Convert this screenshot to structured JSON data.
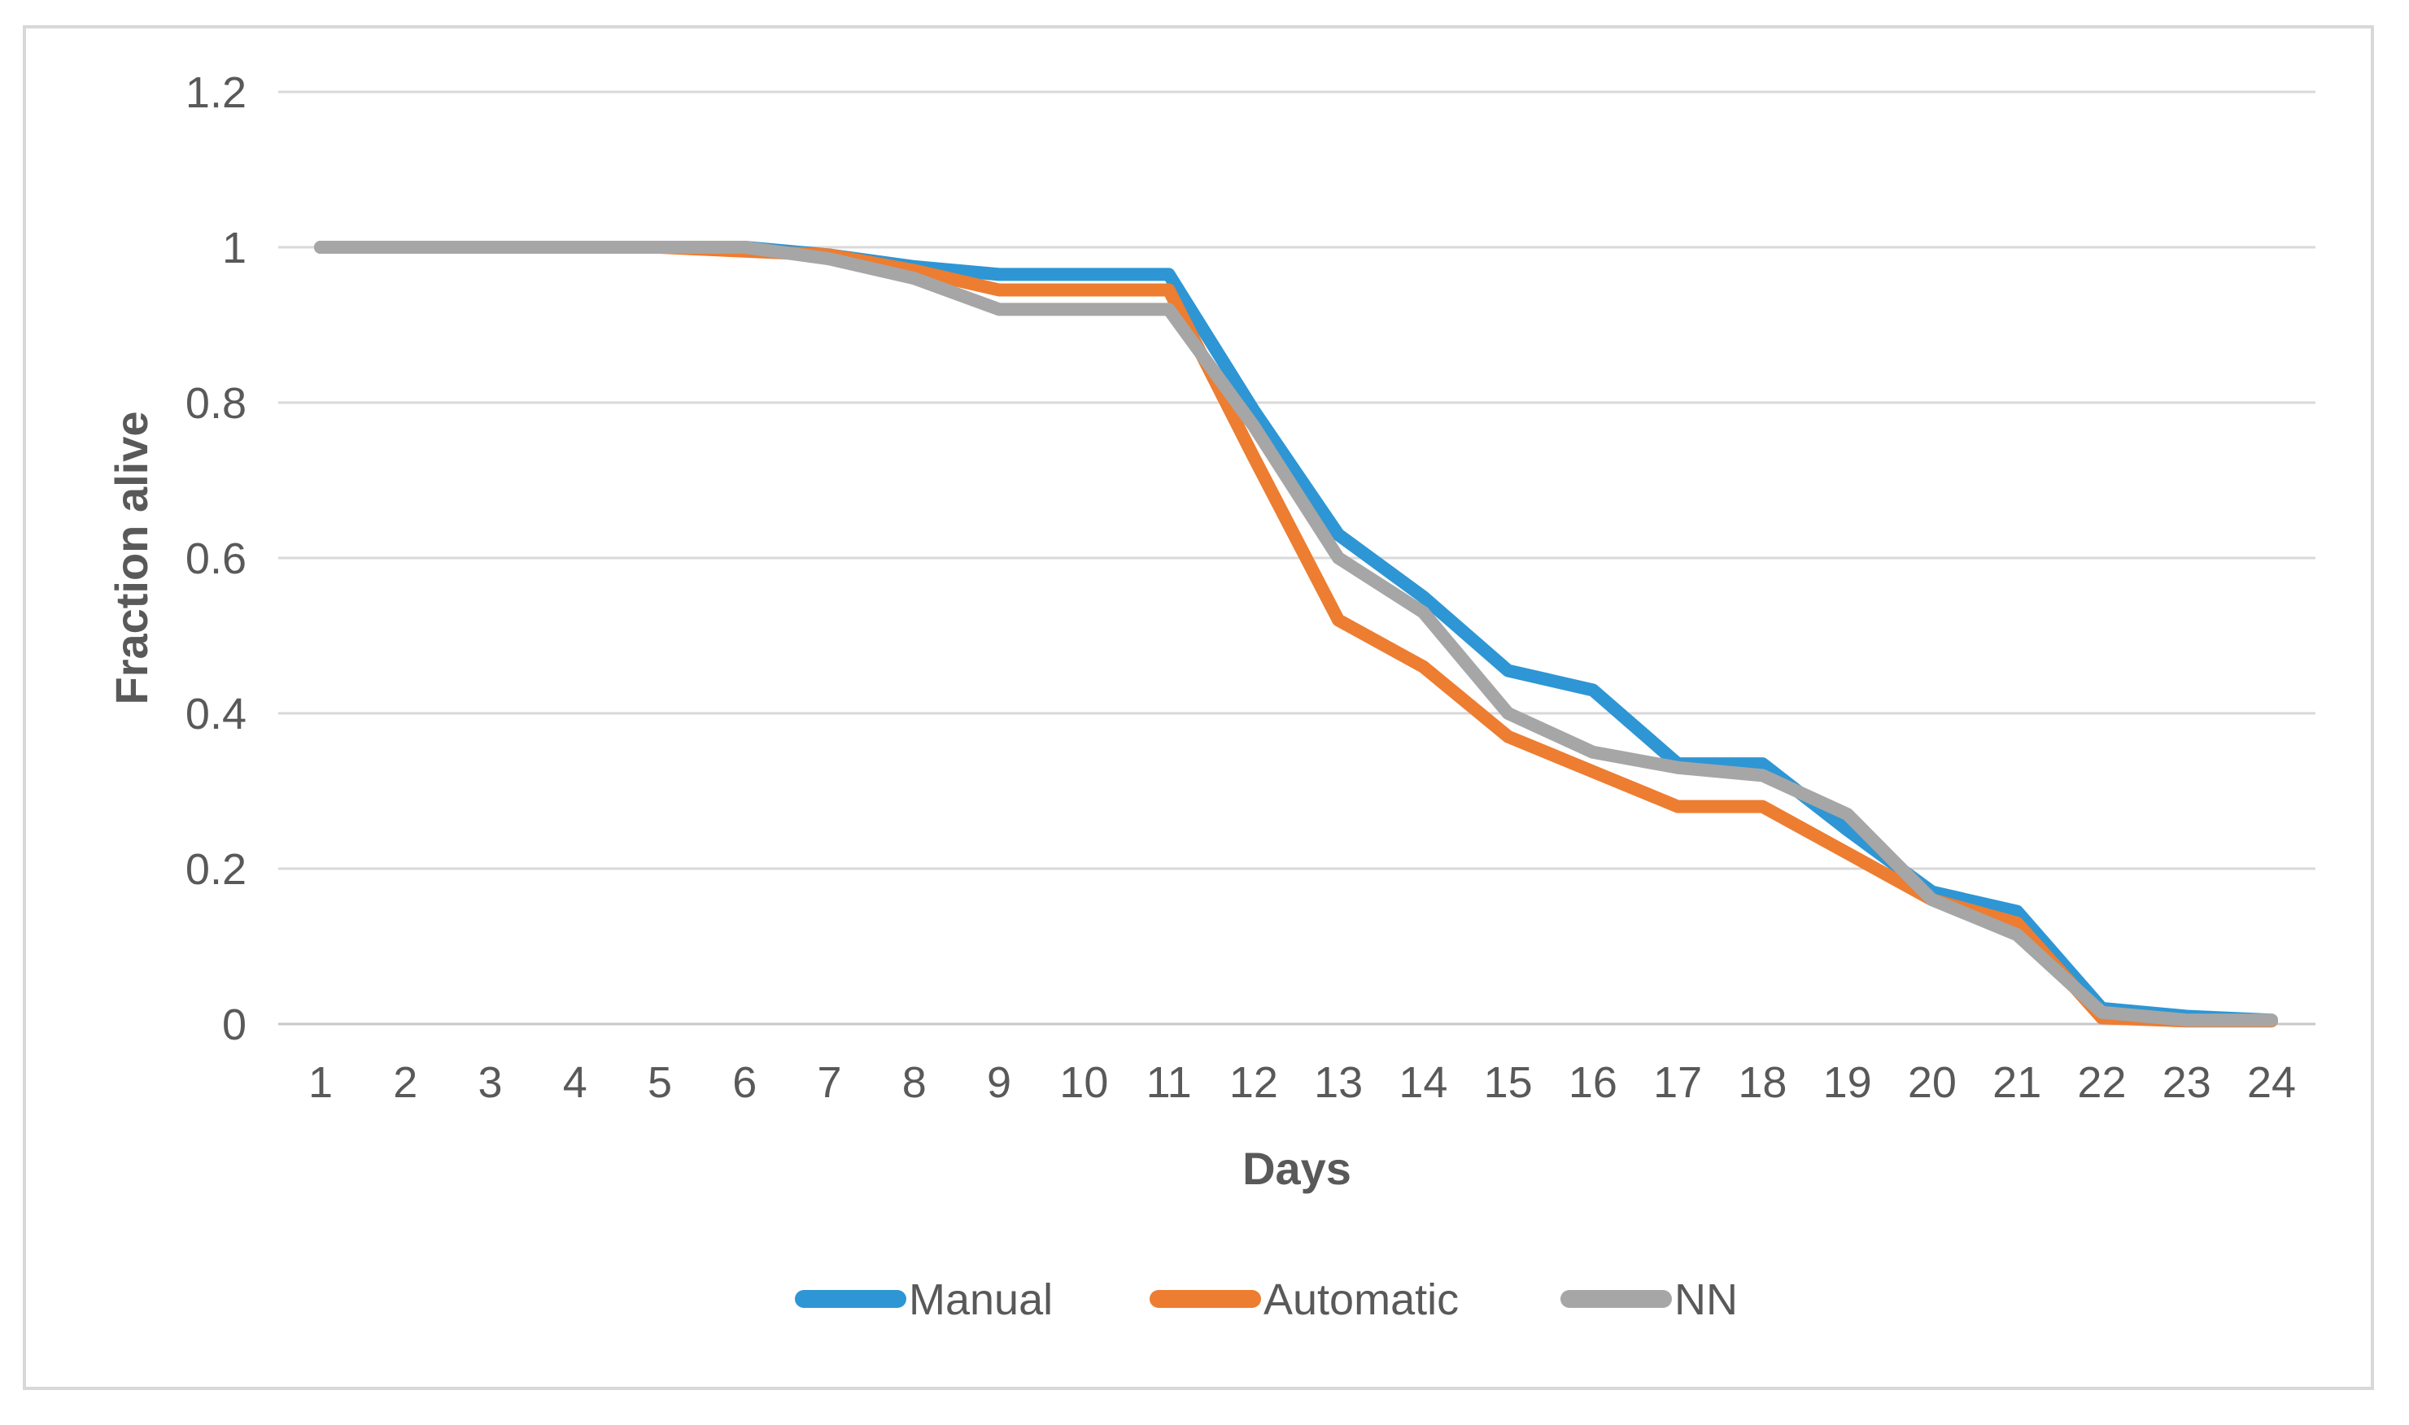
{
  "chart_data": {
    "type": "line",
    "title": "",
    "xlabel": "Days",
    "ylabel": "Fraction alive",
    "x": [
      1,
      2,
      3,
      4,
      5,
      6,
      7,
      8,
      9,
      10,
      11,
      12,
      13,
      14,
      15,
      16,
      17,
      18,
      19,
      20,
      21,
      22,
      23,
      24
    ],
    "xtick_labels": [
      "1",
      "2",
      "3",
      "4",
      "5",
      "6",
      "7",
      "8",
      "9",
      "10",
      "11",
      "12",
      "13",
      "14",
      "15",
      "16",
      "17",
      "18",
      "19",
      "20",
      "21",
      "22",
      "23",
      "24"
    ],
    "ylim": [
      0,
      1.2
    ],
    "yticks": [
      0,
      0.2,
      0.4,
      0.6,
      0.8,
      1,
      1.2
    ],
    "ytick_labels": [
      "0",
      "0.2",
      "0.4",
      "0.6",
      "0.8",
      "1",
      "1.2"
    ],
    "grid": true,
    "legend_position": "bottom",
    "series": [
      {
        "name": "Manual",
        "color": "#2E96D4",
        "values": [
          1,
          1,
          1,
          1,
          1,
          1,
          0.99,
          0.975,
          0.965,
          0.965,
          0.965,
          0.79,
          0.63,
          0.55,
          0.455,
          0.43,
          0.335,
          0.335,
          0.25,
          0.17,
          0.145,
          0.02,
          0.01,
          0.005
        ]
      },
      {
        "name": "Automatic",
        "color": "#ED7D31",
        "values": [
          1,
          1,
          1,
          1,
          1,
          0.995,
          0.99,
          0.97,
          0.945,
          0.945,
          0.945,
          0.73,
          0.52,
          0.46,
          0.37,
          0.325,
          0.28,
          0.28,
          0.22,
          0.16,
          0.13,
          0.008,
          0.004,
          0.004
        ]
      },
      {
        "name": "NN",
        "color": "#A6A6A6",
        "values": [
          1,
          1,
          1,
          1,
          1,
          1,
          0.985,
          0.96,
          0.92,
          0.92,
          0.92,
          0.77,
          0.6,
          0.53,
          0.4,
          0.35,
          0.33,
          0.32,
          0.27,
          0.16,
          0.115,
          0.015,
          0.005,
          0.005
        ]
      }
    ]
  },
  "colors": {
    "background": "#FFFFFF",
    "frame": "#D8D8D8",
    "gridline": "#D9D9D9",
    "axis_line": "#C8C8C8",
    "text": "#595959"
  }
}
